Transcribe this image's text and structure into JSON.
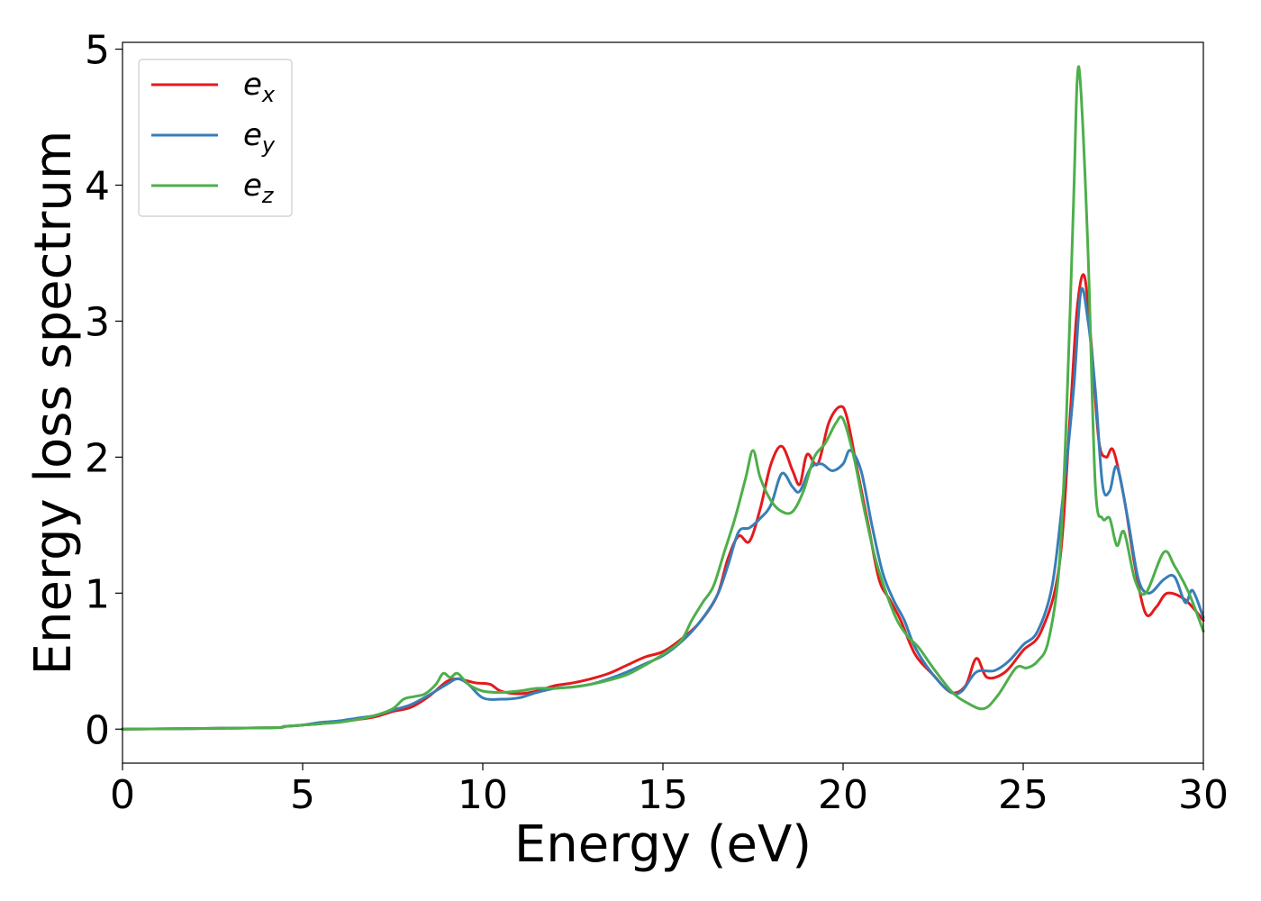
{
  "chart_data": {
    "type": "line",
    "title": "",
    "xlabel": "Energy (eV)",
    "ylabel": "Energy loss spectrum",
    "xlim": [
      0,
      30
    ],
    "ylim": [
      -0.25,
      5.05
    ],
    "xticks": [
      0,
      5,
      10,
      15,
      20,
      25,
      30
    ],
    "yticks": [
      0,
      1,
      2,
      3,
      4,
      5
    ],
    "grid": false,
    "legend_position": "top-left",
    "series": [
      {
        "name": "e_x",
        "base": "e",
        "sub": "x",
        "color": "#e41a1c",
        "x": [
          0,
          4,
          4.5,
          5,
          5.5,
          6,
          6.5,
          7,
          7.5,
          8,
          8.5,
          9,
          9.3,
          9.5,
          9.8,
          10.2,
          10.5,
          11,
          11.5,
          12,
          12.5,
          13,
          13.5,
          14,
          14.5,
          15,
          15.5,
          16,
          16.5,
          16.8,
          17.1,
          17.4,
          17.7,
          18,
          18.3,
          18.6,
          18.8,
          19,
          19.3,
          19.6,
          19.9,
          20.1,
          20.4,
          20.7,
          21,
          21.3,
          21.6,
          22,
          22.5,
          23,
          23.4,
          23.7,
          24,
          24.5,
          25,
          25.5,
          26,
          26.3,
          26.5,
          26.7,
          26.9,
          27.1,
          27.3,
          27.5,
          27.8,
          28.1,
          28.4,
          28.7,
          29,
          29.5,
          30
        ],
        "y": [
          0,
          0.01,
          0.02,
          0.03,
          0.04,
          0.06,
          0.07,
          0.09,
          0.13,
          0.16,
          0.24,
          0.35,
          0.37,
          0.36,
          0.34,
          0.33,
          0.28,
          0.26,
          0.28,
          0.32,
          0.34,
          0.37,
          0.41,
          0.47,
          0.53,
          0.57,
          0.66,
          0.78,
          0.98,
          1.25,
          1.42,
          1.38,
          1.62,
          1.95,
          2.08,
          1.9,
          1.8,
          2.02,
          1.95,
          2.25,
          2.37,
          2.3,
          1.9,
          1.5,
          1.1,
          0.95,
          0.8,
          0.55,
          0.4,
          0.27,
          0.32,
          0.52,
          0.38,
          0.42,
          0.58,
          0.72,
          1.2,
          2.3,
          3.1,
          3.33,
          2.8,
          2.12,
          2.0,
          2.05,
          1.7,
          1.2,
          0.85,
          0.9,
          1.0,
          0.95,
          0.8
        ]
      },
      {
        "name": "e_y",
        "base": "e",
        "sub": "y",
        "color": "#377eb8",
        "x": [
          0,
          4,
          4.5,
          5,
          5.5,
          6,
          6.5,
          7,
          7.5,
          8,
          8.5,
          9,
          9.3,
          9.6,
          10,
          10.5,
          11,
          11.5,
          12,
          12.5,
          13,
          13.5,
          14,
          14.5,
          15,
          15.5,
          16,
          16.5,
          16.8,
          17.1,
          17.4,
          17.7,
          18,
          18.3,
          18.6,
          18.8,
          19.1,
          19.4,
          19.7,
          20,
          20.2,
          20.5,
          20.8,
          21.1,
          21.4,
          21.7,
          22,
          22.5,
          23,
          23.3,
          23.7,
          24.2,
          24.6,
          25,
          25.4,
          25.8,
          26.1,
          26.4,
          26.6,
          26.8,
          27,
          27.2,
          27.4,
          27.6,
          27.9,
          28.2,
          28.5,
          28.9,
          29.2,
          29.5,
          29.7,
          30
        ],
        "y": [
          0,
          0.01,
          0.02,
          0.03,
          0.05,
          0.06,
          0.08,
          0.1,
          0.14,
          0.18,
          0.25,
          0.33,
          0.37,
          0.33,
          0.23,
          0.22,
          0.23,
          0.27,
          0.3,
          0.31,
          0.33,
          0.37,
          0.42,
          0.48,
          0.54,
          0.64,
          0.78,
          0.98,
          1.2,
          1.45,
          1.48,
          1.55,
          1.65,
          1.88,
          1.78,
          1.75,
          1.92,
          1.95,
          1.9,
          1.95,
          2.05,
          1.9,
          1.5,
          1.15,
          0.95,
          0.8,
          0.6,
          0.4,
          0.27,
          0.28,
          0.42,
          0.43,
          0.5,
          0.62,
          0.72,
          1.05,
          1.7,
          2.5,
          3.22,
          3.0,
          2.5,
          1.8,
          1.75,
          1.93,
          1.55,
          1.1,
          1.0,
          1.1,
          1.12,
          0.93,
          1.02,
          0.82
        ]
      },
      {
        "name": "e_z",
        "base": "e",
        "sub": "z",
        "color": "#4daf4a",
        "x": [
          0,
          4,
          4.5,
          5,
          5.5,
          6,
          6.5,
          7,
          7.5,
          7.8,
          8.1,
          8.4,
          8.7,
          8.9,
          9.1,
          9.3,
          9.6,
          10,
          10.5,
          11,
          11.5,
          12,
          12.5,
          13,
          13.5,
          14,
          14.5,
          15,
          15.5,
          15.8,
          16.1,
          16.4,
          16.7,
          17,
          17.3,
          17.5,
          17.7,
          18,
          18.3,
          18.6,
          18.9,
          19.2,
          19.5,
          19.8,
          20,
          20.3,
          20.6,
          20.9,
          21.2,
          21.5,
          21.8,
          22.1,
          22.5,
          23,
          23.4,
          23.9,
          24.3,
          24.8,
          25.1,
          25.4,
          25.7,
          26,
          26.2,
          26.4,
          26.5,
          26.6,
          26.8,
          27,
          27.2,
          27.4,
          27.6,
          27.8,
          28.1,
          28.4,
          28.9,
          29.2,
          29.6,
          30
        ],
        "y": [
          0,
          0.01,
          0.02,
          0.03,
          0.04,
          0.05,
          0.07,
          0.1,
          0.15,
          0.22,
          0.24,
          0.26,
          0.33,
          0.41,
          0.38,
          0.41,
          0.33,
          0.28,
          0.27,
          0.28,
          0.3,
          0.3,
          0.31,
          0.33,
          0.36,
          0.4,
          0.47,
          0.55,
          0.65,
          0.8,
          0.93,
          1.05,
          1.3,
          1.55,
          1.85,
          2.05,
          1.85,
          1.68,
          1.6,
          1.6,
          1.75,
          2.0,
          2.1,
          2.25,
          2.28,
          2.0,
          1.6,
          1.25,
          1.0,
          0.8,
          0.68,
          0.6,
          0.45,
          0.28,
          0.2,
          0.15,
          0.25,
          0.45,
          0.45,
          0.5,
          0.65,
          1.2,
          2.3,
          3.9,
          4.78,
          4.7,
          3.5,
          1.8,
          1.55,
          1.55,
          1.35,
          1.45,
          1.1,
          1.0,
          1.3,
          1.2,
          1.0,
          0.72
        ]
      }
    ]
  }
}
